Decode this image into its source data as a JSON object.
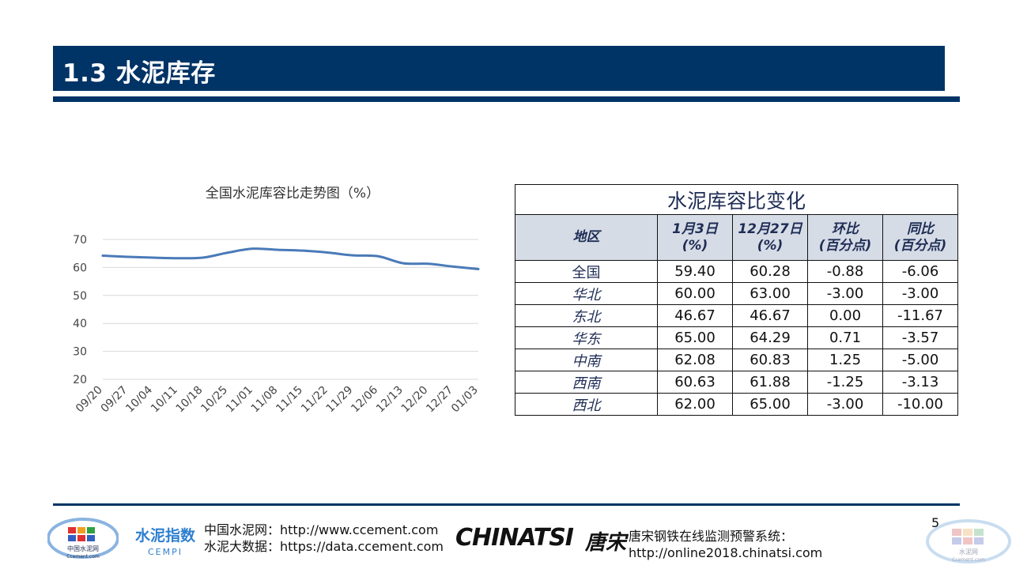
{
  "slide": {
    "title": "1.3 水泥库存",
    "page_number": "5"
  },
  "chart_data": {
    "type": "line",
    "title": "全国水泥库容比走势图（%）",
    "categories": [
      "09/20",
      "09/27",
      "10/04",
      "10/11",
      "10/18",
      "10/25",
      "11/01",
      "11/08",
      "11/15",
      "11/22",
      "11/29",
      "12/06",
      "12/13",
      "12/20",
      "12/27",
      "01/03"
    ],
    "series": [
      {
        "values": [
          64.2,
          63.8,
          63.5,
          63.3,
          63.5,
          65.3,
          66.7,
          66.3,
          66.0,
          65.3,
          64.3,
          64.0,
          61.5,
          61.3,
          60.3,
          59.4
        ]
      }
    ],
    "yticks": [
      20,
      30,
      40,
      50,
      60,
      70
    ],
    "ylim": [
      20,
      70
    ],
    "grid": true,
    "legend": "none",
    "line_color": "#4a7ab8"
  },
  "table": {
    "title": "水泥库容比变化",
    "headers": [
      {
        "line1": "地区",
        "line2": ""
      },
      {
        "line1": "1月3日",
        "line2": "(%)"
      },
      {
        "line1": "12月27日",
        "line2": "(%)"
      },
      {
        "line1": "环比",
        "line2": "(百分点)"
      },
      {
        "line1": "同比",
        "line2": "(百分点)"
      }
    ],
    "rows": [
      {
        "region": "全国",
        "italic": false,
        "jan3": "59.40",
        "dec27": "60.28",
        "mom": "-0.88",
        "yoy": "-6.06"
      },
      {
        "region": "华北",
        "italic": true,
        "jan3": "60.00",
        "dec27": "63.00",
        "mom": "-3.00",
        "yoy": "-3.00"
      },
      {
        "region": "东北",
        "italic": true,
        "jan3": "46.67",
        "dec27": "46.67",
        "mom": "0.00",
        "yoy": "-11.67"
      },
      {
        "region": "华东",
        "italic": true,
        "jan3": "65.00",
        "dec27": "64.29",
        "mom": "0.71",
        "yoy": "-3.57"
      },
      {
        "region": "中南",
        "italic": true,
        "jan3": "62.08",
        "dec27": "60.83",
        "mom": "1.25",
        "yoy": "-5.00"
      },
      {
        "region": "西南",
        "italic": true,
        "jan3": "60.63",
        "dec27": "61.88",
        "mom": "-1.25",
        "yoy": "-3.13"
      },
      {
        "region": "西北",
        "italic": true,
        "jan3": "62.00",
        "dec27": "65.00",
        "mom": "-3.00",
        "yoy": "-10.00"
      }
    ]
  },
  "footer": {
    "ccement_line1": "中国水泥网：http://www.ccement.com",
    "ccement_line2": "水泥大数据：https://data.ccement.com",
    "chinatsi_logo": "CHINATSI",
    "chinatsi_logo_cn": "唐宋",
    "chinatsi_line1": "唐宋钢铁在线监测预警系统：",
    "chinatsi_line2": "http://online2018.chinatsi.com",
    "ccement_logo_text": "中国水泥网",
    "ccement_logo_sub": "Ccement.com",
    "cempi_logo_text": "水泥指数",
    "cempi_logo_sub": "CEMPI",
    "corner_logo_text": "水泥网",
    "corner_logo_sub": "Ccement.com",
    "colors": {
      "navy": "#003366",
      "header_fill": "#d6dce6"
    }
  }
}
